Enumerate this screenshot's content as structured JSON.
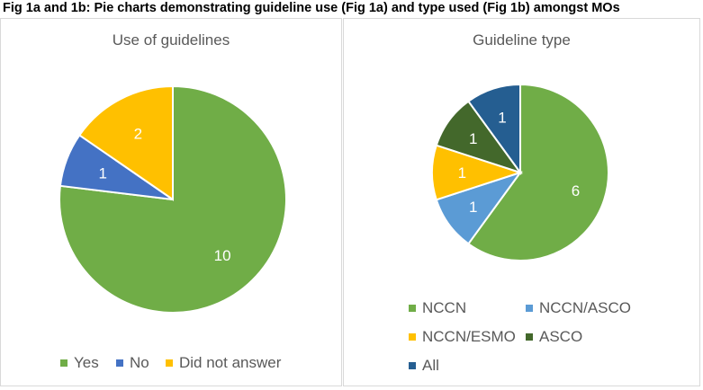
{
  "caption": "Fig 1a and 1b: Pie charts demonstrating guideline use (Fig 1a) and type used (Fig 1b) amongst MOs",
  "colors": {
    "green": "#70ad47",
    "blue": "#4472c4",
    "gold": "#ffc000",
    "lightblue": "#5b9bd5",
    "darkgreen": "#43682b",
    "navy": "#255e91"
  },
  "chart_data": [
    {
      "type": "pie",
      "title": "Use of guidelines",
      "categories": [
        "Yes",
        "No",
        "Did not answer"
      ],
      "values": [
        10,
        1,
        2
      ],
      "colors": [
        "#70ad47",
        "#4472c4",
        "#ffc000"
      ],
      "data_labels": [
        "10",
        "1",
        "2"
      ],
      "start_angle_deg": 0,
      "direction": "clockwise",
      "legend": "bottom"
    },
    {
      "type": "pie",
      "title": "Guideline type",
      "categories": [
        "NCCN",
        "NCCN/ASCO",
        "NCCN/ESMO",
        "ASCO",
        "All"
      ],
      "values": [
        6,
        1,
        1,
        1,
        1
      ],
      "colors": [
        "#70ad47",
        "#5b9bd5",
        "#ffc000",
        "#43682b",
        "#255e91"
      ],
      "data_labels": [
        "6",
        "1",
        "1",
        "1",
        "1"
      ],
      "start_angle_deg": 0,
      "direction": "clockwise",
      "legend": "bottom"
    }
  ]
}
